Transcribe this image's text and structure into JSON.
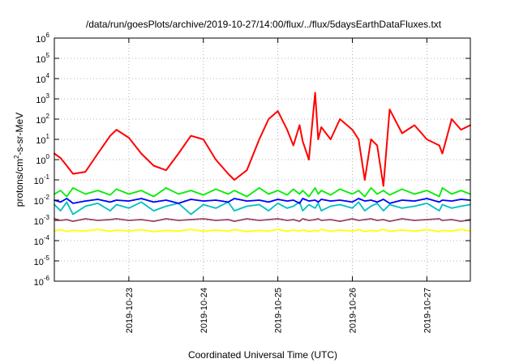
{
  "chart_data": {
    "type": "line",
    "title": "/data/run/goesPlots/archive/2019-10-27/14:00/flux/../flux/5daysEarthDataFluxes.txt",
    "xlabel": "Coordinated Universal Time (UTC)",
    "ylabel": "protons/cm2-s-sr-MeV",
    "ylabel_parts": {
      "pre": "protons/cm",
      "sup": "2",
      "post": "-s-sr-MeV"
    },
    "x_type": "time",
    "x_tick_labels": [
      "2019-10-23",
      "2019-10-24",
      "2019-10-25",
      "2019-10-26",
      "2019-10-27"
    ],
    "xlim": [
      "2019-10-22",
      "2019-10-27 14:00"
    ],
    "y_scale": "log",
    "ylim": [
      1e-06,
      1000000
    ],
    "y_ticks": [
      {
        "base": "10",
        "exp": "-6"
      },
      {
        "base": "10",
        "exp": "-5"
      },
      {
        "base": "10",
        "exp": "-4"
      },
      {
        "base": "10",
        "exp": "-3"
      },
      {
        "base": "10",
        "exp": "-2"
      },
      {
        "base": "10",
        "exp": "-1"
      },
      {
        "base": "10",
        "exp": "0"
      },
      {
        "base": "10",
        "exp": "1"
      },
      {
        "base": "10",
        "exp": "2"
      },
      {
        "base": "10",
        "exp": "3"
      },
      {
        "base": "10",
        "exp": "4"
      },
      {
        "base": "10",
        "exp": "5"
      },
      {
        "base": "10",
        "exp": "6"
      }
    ],
    "grid": true,
    "x": [
      "2019-10-22 00:00",
      "2019-10-22 02:00",
      "2019-10-22 04:00",
      "2019-10-22 06:00",
      "2019-10-22 10:00",
      "2019-10-22 14:00",
      "2019-10-22 18:00",
      "2019-10-22 20:00",
      "2019-10-23 00:00",
      "2019-10-23 04:00",
      "2019-10-23 08:00",
      "2019-10-23 12:00",
      "2019-10-23 16:00",
      "2019-10-23 20:00",
      "2019-10-24 00:00",
      "2019-10-24 04:00",
      "2019-10-24 08:00",
      "2019-10-24 10:00",
      "2019-10-24 14:00",
      "2019-10-24 18:00",
      "2019-10-24 21:00",
      "2019-10-25 00:00",
      "2019-10-25 03:00",
      "2019-10-25 05:00",
      "2019-10-25 07:00",
      "2019-10-25 08:00",
      "2019-10-25 10:00",
      "2019-10-25 12:00",
      "2019-10-25 13:00",
      "2019-10-25 14:00",
      "2019-10-25 17:00",
      "2019-10-25 20:00",
      "2019-10-26 00:00",
      "2019-10-26 02:00",
      "2019-10-26 04:00",
      "2019-10-26 06:00",
      "2019-10-26 08:00",
      "2019-10-26 10:00",
      "2019-10-26 12:00",
      "2019-10-26 16:00",
      "2019-10-26 20:00",
      "2019-10-27 00:00",
      "2019-10-27 04:00",
      "2019-10-27 05:00",
      "2019-10-27 08:00",
      "2019-10-27 11:00",
      "2019-10-27 14:00"
    ],
    "series": [
      {
        "color": "#ff0000",
        "values": [
          2,
          1.2,
          0.5,
          0.2,
          0.25,
          2,
          15,
          30,
          12,
          2,
          0.5,
          0.3,
          2,
          15,
          10,
          1,
          0.2,
          0.1,
          0.3,
          10,
          100,
          250,
          30,
          5,
          50,
          8,
          1,
          2000,
          10,
          40,
          10,
          100,
          30,
          10,
          0.1,
          10,
          5,
          0.05,
          300,
          20,
          50,
          10,
          5,
          2,
          100,
          30,
          50
        ]
      },
      {
        "color": "#00ee00",
        "values": [
          0.02,
          0.03,
          0.015,
          0.04,
          0.02,
          0.03,
          0.018,
          0.035,
          0.02,
          0.03,
          0.015,
          0.04,
          0.02,
          0.03,
          0.018,
          0.035,
          0.02,
          0.03,
          0.015,
          0.04,
          0.02,
          0.03,
          0.018,
          0.035,
          0.02,
          0.03,
          0.015,
          0.04,
          0.02,
          0.03,
          0.018,
          0.035,
          0.02,
          0.03,
          0.015,
          0.04,
          0.02,
          0.03,
          0.018,
          0.035,
          0.02,
          0.03,
          0.015,
          0.04,
          0.02,
          0.03,
          0.02
        ]
      },
      {
        "color": "#00c0c0",
        "values": [
          0.006,
          0.003,
          0.008,
          0.002,
          0.005,
          0.007,
          0.003,
          0.006,
          0.004,
          0.008,
          0.003,
          0.005,
          0.007,
          0.002,
          0.006,
          0.004,
          0.008,
          0.003,
          0.005,
          0.006,
          0.003,
          0.007,
          0.004,
          0.005,
          0.008,
          0.003,
          0.006,
          0.004,
          0.007,
          0.003,
          0.005,
          0.006,
          0.004,
          0.008,
          0.003,
          0.005,
          0.007,
          0.003,
          0.006,
          0.004,
          0.005,
          0.007,
          0.003,
          0.006,
          0.004,
          0.005,
          0.006
        ]
      },
      {
        "color": "#0000ff",
        "values": [
          0.01,
          0.008,
          0.012,
          0.007,
          0.009,
          0.011,
          0.008,
          0.01,
          0.009,
          0.012,
          0.008,
          0.01,
          0.007,
          0.011,
          0.009,
          0.01,
          0.008,
          0.012,
          0.009,
          0.01,
          0.008,
          0.011,
          0.009,
          0.01,
          0.007,
          0.012,
          0.009,
          0.01,
          0.008,
          0.011,
          0.009,
          0.01,
          0.008,
          0.012,
          0.009,
          0.01,
          0.008,
          0.011,
          0.007,
          0.01,
          0.009,
          0.012,
          0.008,
          0.01,
          0.009,
          0.011,
          0.01
        ]
      },
      {
        "color": "#ffff00",
        "values": [
          0.0003,
          0.00035,
          0.00028,
          0.00032,
          0.0003,
          0.00036,
          0.00029,
          0.00033,
          0.0003,
          0.00035,
          0.00028,
          0.00032,
          0.0003,
          0.00036,
          0.00029,
          0.00033,
          0.0003,
          0.00035,
          0.00028,
          0.00032,
          0.0003,
          0.00036,
          0.00029,
          0.00033,
          0.0003,
          0.00035,
          0.00028,
          0.00032,
          0.0003,
          0.00036,
          0.00029,
          0.00033,
          0.0003,
          0.00035,
          0.00028,
          0.00032,
          0.0003,
          0.00036,
          0.00029,
          0.00033,
          0.0003,
          0.00035,
          0.00028,
          0.00032,
          0.0003,
          0.00036,
          0.0003
        ]
      },
      {
        "color": "#994466",
        "values": [
          0.0012,
          0.001,
          0.0011,
          0.0009,
          0.0012,
          0.001,
          0.0011,
          0.0012,
          0.001,
          0.0011,
          0.0009,
          0.0012,
          0.001,
          0.0011,
          0.0012,
          0.001,
          0.0011,
          0.0009,
          0.0012,
          0.001,
          0.0011,
          0.0012,
          0.001,
          0.0011,
          0.0009,
          0.0012,
          0.001,
          0.0011,
          0.0012,
          0.001,
          0.0011,
          0.0009,
          0.0012,
          0.001,
          0.0011,
          0.0012,
          0.001,
          0.0011,
          0.0009,
          0.0012,
          0.001,
          0.0011,
          0.0012,
          0.001,
          0.0011,
          0.0009,
          0.0011
        ]
      }
    ]
  }
}
